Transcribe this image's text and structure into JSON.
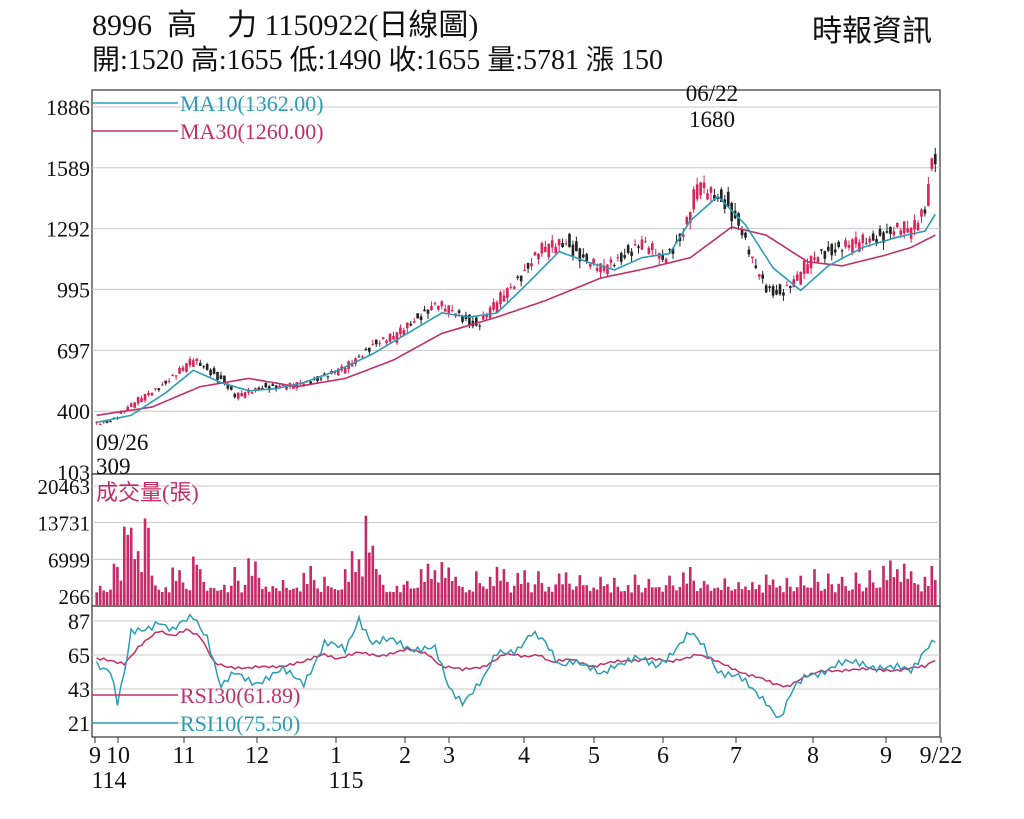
{
  "header": {
    "code": "8996",
    "name": "高　力",
    "date_label": "1150922(日線圖)",
    "source": "時報資訊",
    "ohlc": {
      "open_label": "開",
      "open": "1520",
      "high_label": "高",
      "high": "1655",
      "low_label": "低",
      "low": "1490",
      "close_label": "收",
      "close": "1655",
      "volume_label": "量",
      "volume": "5781",
      "change_label": "漲",
      "change": "150"
    }
  },
  "chart_data": [
    {
      "type": "candlestick",
      "panel": "price",
      "y_ticks": [
        1886,
        1589,
        1292,
        995,
        697,
        400,
        103
      ],
      "ylim": [
        103,
        1886
      ],
      "legend": [
        {
          "label": "MA10(1362.00)",
          "color": "#2a9db5"
        },
        {
          "label": "MA30(1260.00)",
          "color": "#c0306a"
        }
      ],
      "annotations": [
        {
          "date": "06/22",
          "value": "1680",
          "kind": "high"
        },
        {
          "date": "09/26",
          "value": "309",
          "kind": "low"
        }
      ],
      "candle_colors": {
        "up": "#d8245a",
        "down": "#222222"
      },
      "x_labels": [
        "9",
        "10",
        "11",
        "12",
        "1",
        "2",
        "3",
        "4",
        "5",
        "6",
        "7",
        "8",
        "9",
        "9/22"
      ],
      "x_year_labels": [
        "114",
        "115"
      ],
      "close_anchors": [
        [
          0,
          340
        ],
        [
          4,
          355
        ],
        [
          10,
          430
        ],
        [
          18,
          520
        ],
        [
          28,
          650
        ],
        [
          36,
          560
        ],
        [
          40,
          470
        ],
        [
          48,
          520
        ],
        [
          56,
          520
        ],
        [
          64,
          560
        ],
        [
          72,
          610
        ],
        [
          80,
          730
        ],
        [
          86,
          760
        ],
        [
          92,
          850
        ],
        [
          98,
          920
        ],
        [
          104,
          880
        ],
        [
          110,
          820
        ],
        [
          116,
          930
        ],
        [
          122,
          1050
        ],
        [
          128,
          1180
        ],
        [
          136,
          1230
        ],
        [
          142,
          1130
        ],
        [
          146,
          1090
        ],
        [
          152,
          1160
        ],
        [
          158,
          1220
        ],
        [
          164,
          1140
        ],
        [
          170,
          1280
        ],
        [
          174,
          1500
        ],
        [
          178,
          1460
        ],
        [
          182,
          1430
        ],
        [
          186,
          1310
        ],
        [
          190,
          1120
        ],
        [
          194,
          1000
        ],
        [
          198,
          980
        ],
        [
          202,
          1030
        ],
        [
          206,
          1120
        ],
        [
          210,
          1180
        ],
        [
          216,
          1200
        ],
        [
          224,
          1240
        ],
        [
          232,
          1290
        ],
        [
          236,
          1280
        ],
        [
          240,
          1400
        ],
        [
          242,
          1655
        ]
      ],
      "ma10_anchors": [
        [
          0,
          345
        ],
        [
          10,
          380
        ],
        [
          20,
          490
        ],
        [
          28,
          600
        ],
        [
          36,
          540
        ],
        [
          44,
          500
        ],
        [
          52,
          510
        ],
        [
          60,
          540
        ],
        [
          70,
          600
        ],
        [
          80,
          680
        ],
        [
          90,
          780
        ],
        [
          100,
          880
        ],
        [
          108,
          860
        ],
        [
          116,
          880
        ],
        [
          124,
          1010
        ],
        [
          134,
          1180
        ],
        [
          142,
          1130
        ],
        [
          150,
          1090
        ],
        [
          158,
          1150
        ],
        [
          166,
          1170
        ],
        [
          172,
          1330
        ],
        [
          180,
          1450
        ],
        [
          188,
          1310
        ],
        [
          196,
          1100
        ],
        [
          204,
          990
        ],
        [
          212,
          1110
        ],
        [
          222,
          1200
        ],
        [
          232,
          1250
        ],
        [
          240,
          1280
        ],
        [
          243,
          1362
        ]
      ],
      "ma30_anchors": [
        [
          0,
          380
        ],
        [
          16,
          420
        ],
        [
          30,
          520
        ],
        [
          44,
          560
        ],
        [
          58,
          520
        ],
        [
          72,
          560
        ],
        [
          86,
          650
        ],
        [
          100,
          780
        ],
        [
          116,
          860
        ],
        [
          130,
          940
        ],
        [
          146,
          1050
        ],
        [
          160,
          1100
        ],
        [
          172,
          1150
        ],
        [
          184,
          1300
        ],
        [
          194,
          1260
        ],
        [
          206,
          1130
        ],
        [
          216,
          1110
        ],
        [
          228,
          1160
        ],
        [
          236,
          1200
        ],
        [
          243,
          1260
        ]
      ]
    },
    {
      "type": "bar",
      "panel": "volume",
      "title": "成交量(張)",
      "y_ticks": [
        20463,
        13731,
        6999,
        266
      ],
      "ylim": [
        266,
        20463
      ],
      "color": "#c62b67",
      "peaks": [
        [
          5,
          6200
        ],
        [
          6,
          5600
        ],
        [
          8,
          13000
        ],
        [
          9,
          11500
        ],
        [
          10,
          12800
        ],
        [
          12,
          8500
        ],
        [
          14,
          14500
        ],
        [
          15,
          12800
        ],
        [
          16,
          4000
        ],
        [
          22,
          5500
        ],
        [
          24,
          5000
        ],
        [
          28,
          7500
        ],
        [
          29,
          6000
        ],
        [
          30,
          5200
        ],
        [
          40,
          5600
        ],
        [
          44,
          7200
        ],
        [
          46,
          6600
        ],
        [
          54,
          3200
        ],
        [
          60,
          4500
        ],
        [
          62,
          5800
        ],
        [
          66,
          3800
        ],
        [
          72,
          5200
        ],
        [
          74,
          8500
        ],
        [
          76,
          7000
        ],
        [
          78,
          15000
        ],
        [
          80,
          9500
        ],
        [
          82,
          4200
        ],
        [
          90,
          3000
        ],
        [
          94,
          5200
        ],
        [
          96,
          6200
        ],
        [
          98,
          5000
        ],
        [
          100,
          6500
        ],
        [
          102,
          5500
        ],
        [
          104,
          3800
        ],
        [
          110,
          4800
        ],
        [
          114,
          3800
        ],
        [
          116,
          5600
        ],
        [
          118,
          5200
        ],
        [
          122,
          4500
        ],
        [
          124,
          5000
        ],
        [
          128,
          4800
        ],
        [
          134,
          4400
        ],
        [
          136,
          4600
        ],
        [
          140,
          4100
        ],
        [
          146,
          3800
        ],
        [
          150,
          3600
        ],
        [
          156,
          4200
        ],
        [
          160,
          3400
        ],
        [
          166,
          4000
        ],
        [
          170,
          4600
        ],
        [
          172,
          5600
        ],
        [
          176,
          3000
        ],
        [
          182,
          3500
        ],
        [
          186,
          2800
        ],
        [
          190,
          2800
        ],
        [
          194,
          4200
        ],
        [
          196,
          3300
        ],
        [
          200,
          3600
        ],
        [
          204,
          4000
        ],
        [
          208,
          5200
        ],
        [
          212,
          4400
        ],
        [
          216,
          3800
        ],
        [
          220,
          4600
        ],
        [
          224,
          5000
        ],
        [
          228,
          5800
        ],
        [
          230,
          6800
        ],
        [
          232,
          5200
        ],
        [
          234,
          6200
        ],
        [
          236,
          4800
        ],
        [
          240,
          3800
        ],
        [
          242,
          5781
        ]
      ]
    },
    {
      "type": "line",
      "panel": "rsi",
      "y_ticks": [
        87,
        65,
        43,
        21
      ],
      "ylim": [
        14,
        94
      ],
      "series": [
        {
          "name": "RSI30(61.89)",
          "color": "#c0306a",
          "anchors": [
            [
              0,
              62
            ],
            [
              8,
              60
            ],
            [
              12,
              70
            ],
            [
              18,
              80
            ],
            [
              22,
              78
            ],
            [
              26,
              82
            ],
            [
              30,
              76
            ],
            [
              34,
              60
            ],
            [
              38,
              58
            ],
            [
              44,
              56
            ],
            [
              52,
              58
            ],
            [
              60,
              60
            ],
            [
              66,
              66
            ],
            [
              70,
              63
            ],
            [
              76,
              66
            ],
            [
              82,
              65
            ],
            [
              90,
              68
            ],
            [
              96,
              66
            ],
            [
              100,
              58
            ],
            [
              106,
              55
            ],
            [
              112,
              58
            ],
            [
              118,
              65
            ],
            [
              124,
              64
            ],
            [
              128,
              66
            ],
            [
              132,
              60
            ],
            [
              138,
              62
            ],
            [
              144,
              58
            ],
            [
              150,
              60
            ],
            [
              156,
              62
            ],
            [
              160,
              63
            ],
            [
              166,
              60
            ],
            [
              170,
              63
            ],
            [
              174,
              66
            ],
            [
              180,
              60
            ],
            [
              186,
              55
            ],
            [
              192,
              50
            ],
            [
              196,
              46
            ],
            [
              200,
              45
            ],
            [
              204,
              50
            ],
            [
              210,
              54
            ],
            [
              218,
              56
            ],
            [
              226,
              55
            ],
            [
              234,
              56
            ],
            [
              240,
              57
            ],
            [
              243,
              61.89
            ]
          ]
        },
        {
          "name": "RSI10(75.50)",
          "color": "#2a9db5",
          "anchors": [
            [
              0,
              60
            ],
            [
              4,
              56
            ],
            [
              6,
              34
            ],
            [
              8,
              52
            ],
            [
              10,
              78
            ],
            [
              14,
              82
            ],
            [
              18,
              88
            ],
            [
              22,
              80
            ],
            [
              28,
              90
            ],
            [
              32,
              78
            ],
            [
              36,
              44
            ],
            [
              40,
              52
            ],
            [
              46,
              48
            ],
            [
              54,
              54
            ],
            [
              60,
              48
            ],
            [
              66,
              72
            ],
            [
              72,
              68
            ],
            [
              76,
              90
            ],
            [
              80,
              72
            ],
            [
              86,
              74
            ],
            [
              92,
              70
            ],
            [
              98,
              68
            ],
            [
              102,
              44
            ],
            [
              106,
              36
            ],
            [
              112,
              48
            ],
            [
              116,
              66
            ],
            [
              122,
              70
            ],
            [
              126,
              78
            ],
            [
              130,
              72
            ],
            [
              134,
              60
            ],
            [
              138,
              62
            ],
            [
              142,
              56
            ],
            [
              146,
              52
            ],
            [
              150,
              60
            ],
            [
              156,
              62
            ],
            [
              162,
              58
            ],
            [
              168,
              70
            ],
            [
              172,
              78
            ],
            [
              176,
              70
            ],
            [
              180,
              56
            ],
            [
              186,
              50
            ],
            [
              190,
              42
            ],
            [
              194,
              36
            ],
            [
              198,
              24
            ],
            [
              202,
              42
            ],
            [
              206,
              52
            ],
            [
              214,
              58
            ],
            [
              222,
              60
            ],
            [
              230,
              56
            ],
            [
              236,
              55
            ],
            [
              240,
              70
            ],
            [
              243,
              75.5
            ]
          ]
        }
      ]
    }
  ]
}
